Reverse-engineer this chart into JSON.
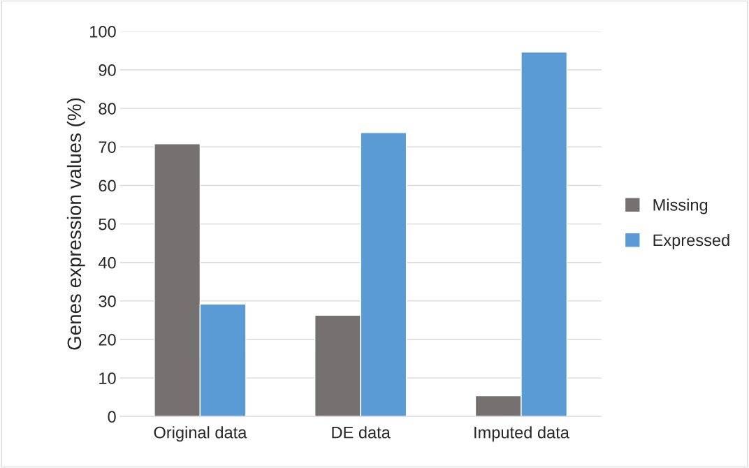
{
  "chart_data": {
    "type": "bar",
    "ylabel": "Genes expression values (%)",
    "categories": [
      "Original data",
      "DE data",
      "Imputed data"
    ],
    "series": [
      {
        "name": "Missing",
        "color": "#767171",
        "values": [
          70.8,
          26.3,
          5.4
        ]
      },
      {
        "name": "Expressed",
        "color": "#5b9bd5",
        "values": [
          29.2,
          73.7,
          94.6
        ]
      }
    ],
    "ylim": [
      0,
      100
    ],
    "yticks": [
      0,
      10,
      20,
      30,
      40,
      50,
      60,
      70,
      80,
      90,
      100
    ],
    "grid": "y",
    "legend": "right"
  }
}
